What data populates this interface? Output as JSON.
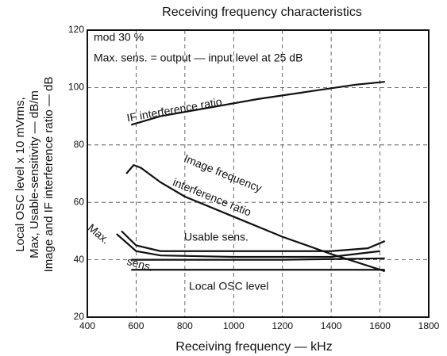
{
  "chart_data": {
    "type": "line",
    "title": "Receiving frequency characteristics",
    "x_label": "Receiving frequency — kHz",
    "y_label": [
      "Local OSC level x 10 mVrms,",
      "Max, Usable-sensitivity — dB/m",
      "Image and IF interference ratio — dB"
    ],
    "annotations": [
      "mod 30 %",
      "Max. sens. = output — input level at 25 dB",
      "IF interference ratio",
      "Image frequency",
      "interference ratio",
      "Usable sens.",
      "Max.",
      "sens.",
      "Local OSC level"
    ],
    "xlim": [
      400,
      1800
    ],
    "xticks": [
      400,
      600,
      800,
      1000,
      1200,
      1400,
      1600,
      1800
    ],
    "ylim": [
      20,
      120
    ],
    "yticks": [
      20,
      40,
      60,
      80,
      100,
      120
    ],
    "grid": true,
    "color": "#111111",
    "series": [
      {
        "x": [
          580,
          700,
          900,
          1100,
          1300,
          1500,
          1620
        ],
        "values": [
          87,
          90,
          93,
          96,
          98.5,
          101,
          102
        ]
      },
      {
        "x": [
          560,
          590,
          620,
          700,
          800,
          1000,
          1200,
          1400,
          1620
        ],
        "values": [
          70,
          73,
          72,
          67,
          62,
          55,
          48,
          42,
          36
        ]
      },
      {
        "x": [
          540,
          600,
          700,
          1000,
          1400,
          1550,
          1620
        ],
        "values": [
          50,
          45,
          43,
          43,
          43,
          44,
          46.5
        ]
      },
      {
        "x": [
          520,
          600,
          700,
          1000,
          1400,
          1600
        ],
        "values": [
          49,
          43,
          41.5,
          41,
          41,
          43
        ]
      },
      {
        "x": [
          580,
          800,
          1200,
          1620
        ],
        "values": [
          40,
          40,
          40,
          40.5
        ]
      },
      {
        "x": [
          580,
          1000,
          1620
        ],
        "values": [
          36.5,
          36.5,
          36.5
        ]
      }
    ]
  }
}
